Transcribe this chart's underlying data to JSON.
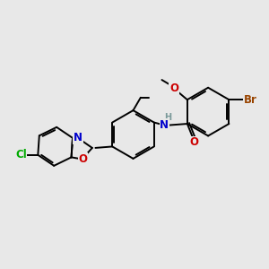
{
  "background_color": "#e8e8e8",
  "bond_color": "#000000",
  "bond_width": 1.4,
  "atom_colors": {
    "C": "#000000",
    "N": "#0000cc",
    "O": "#cc0000",
    "Br": "#994400",
    "Cl": "#00aa00",
    "H": "#7a9999"
  },
  "font_size": 8.5,
  "fig_width": 3.0,
  "fig_height": 3.0,
  "dpi": 100,
  "xlim": [
    0,
    10
  ],
  "ylim": [
    1,
    9
  ]
}
